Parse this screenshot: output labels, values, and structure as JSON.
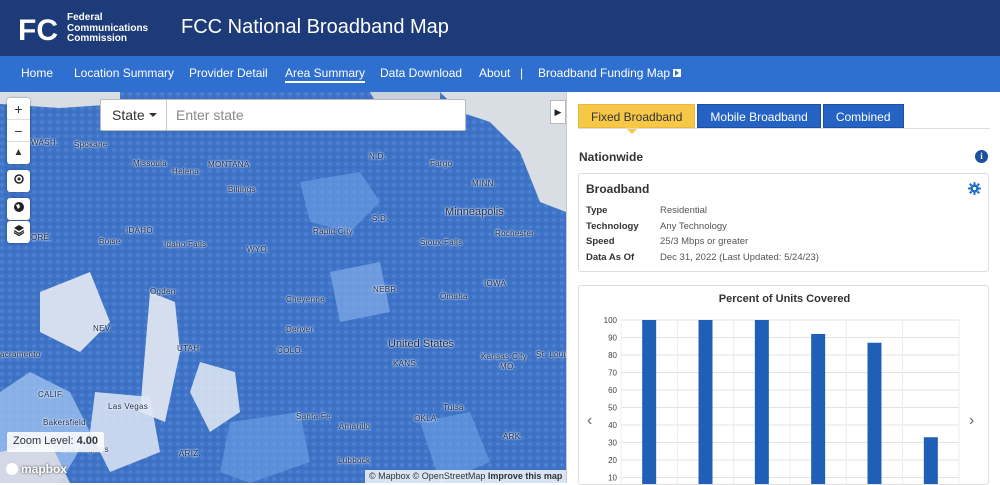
{
  "header": {
    "logo_text": "FCC",
    "agency_lines": [
      "Federal",
      "Communications",
      "Commission"
    ],
    "title": "FCC National Broadband Map"
  },
  "nav": {
    "items": [
      {
        "label": "Home",
        "active": false
      },
      {
        "label": "Location Summary",
        "active": false
      },
      {
        "label": "Provider Detail",
        "active": false
      },
      {
        "label": "Area Summary",
        "active": true
      },
      {
        "label": "Data Download",
        "active": false
      },
      {
        "label": "About",
        "active": false
      },
      {
        "label": "|",
        "active": false
      },
      {
        "label": "Broadband Funding Map",
        "active": false
      }
    ]
  },
  "map": {
    "search": {
      "type_label": "State",
      "placeholder": "Enter state"
    },
    "zoom_level_label": "Zoom Level:",
    "zoom_level_value": "4.00",
    "attribution": {
      "mapbox": "© Mapbox",
      "osm": "© OpenStreetMap",
      "improve": "Improve this map"
    },
    "logo": "mapbox",
    "labels": [
      "WASH.",
      "Spokane",
      "Missoula",
      "Helena",
      "MONTANA",
      "N.D.",
      "Fargo",
      "MINN.",
      "Billings",
      "Minneapolis",
      "S.D.",
      "Rapid City",
      "Rochester",
      "ORE.",
      "Boise",
      "IDAHO",
      "Idaho Falls",
      "WYO.",
      "Sioux Falls",
      "IOWA",
      "NEBR.",
      "Omaha",
      "NEV.",
      "Cheyenne",
      "Denver",
      "UTAH",
      "COLO.",
      "United States",
      "Kansas City",
      "KANS.",
      "St. Louis",
      "acramento",
      "CALIF.",
      "Las Vegas",
      "Santa Fe",
      "Tulsa",
      "OKLA.",
      "ARK.",
      "Bakersfield",
      "Los Angeles",
      "ARIZ.",
      "Amarillo",
      "Lubbock",
      "MO.",
      "Ogden"
    ],
    "colors": {
      "coverage_full": "#3f73c6",
      "coverage_partial": "#6fa1e8",
      "no_coverage": "#eef1f6"
    }
  },
  "panel": {
    "tabs": [
      {
        "label": "Fixed Broadband",
        "active": true
      },
      {
        "label": "Mobile Broadband",
        "active": false
      },
      {
        "label": "Combined",
        "active": false
      }
    ],
    "area_title": "Nationwide",
    "card": {
      "title": "Broadband",
      "rows": [
        {
          "key": "Type",
          "value": "Residential"
        },
        {
          "key": "Technology",
          "value": "Any Technology"
        },
        {
          "key": "Speed",
          "value": "25/3 Mbps or greater"
        },
        {
          "key": "Data As Of",
          "value": "Dec 31, 2022 (Last Updated: 5/24/23)"
        }
      ]
    }
  },
  "chart_data": {
    "type": "bar",
    "title": "Percent of Units Covered",
    "xlabel": "",
    "ylabel": "",
    "ylim": [
      0,
      100
    ],
    "yticks": [
      100,
      90,
      80,
      70,
      60,
      50,
      40,
      30,
      20,
      10
    ],
    "values": [
      100,
      100,
      100,
      92,
      87,
      33
    ],
    "bar_color": "#1f5fb8",
    "grid": true
  }
}
